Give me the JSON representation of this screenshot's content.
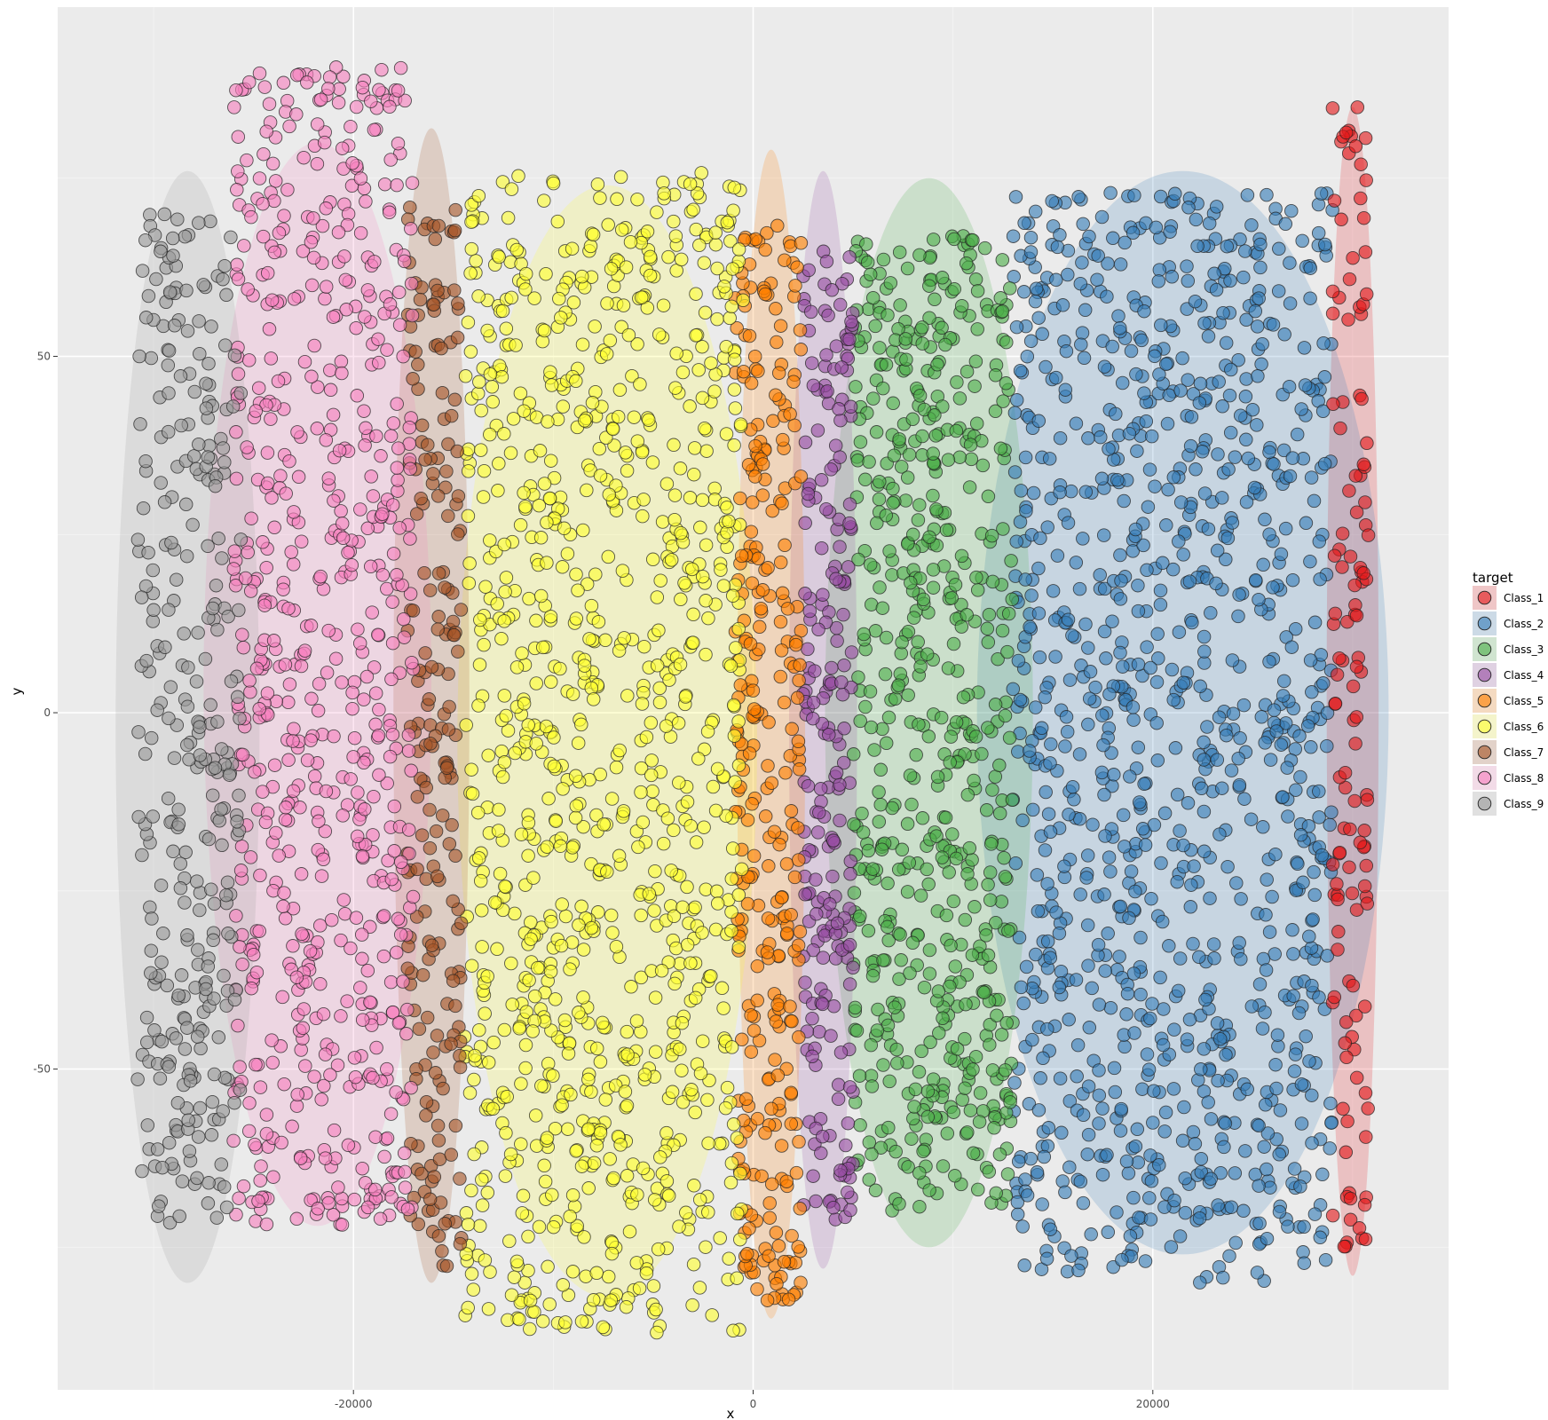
{
  "chart_data": {
    "type": "scatter",
    "title": "",
    "xlabel": "x",
    "ylabel": "y",
    "xlim": [
      -34800,
      34800
    ],
    "ylim": [
      -95,
      99
    ],
    "x_ticks": [
      -20000,
      0,
      20000
    ],
    "x_tick_labels": [
      "-20000",
      "0",
      "20000"
    ],
    "y_ticks": [
      -50,
      0,
      50
    ],
    "y_tick_labels": [
      "-50",
      "0",
      "50"
    ],
    "grid": true,
    "legend": {
      "title": "target",
      "position": "right"
    },
    "series": [
      {
        "name": "Class_1",
        "color": "#e41a1c",
        "n_points": 130,
        "x_range": [
          29000,
          30800
        ],
        "y_range": [
          -75,
          86
        ],
        "ellipse": {
          "cx": 30000,
          "cy": 3,
          "rx": 1300,
          "ry": 82
        }
      },
      {
        "name": "Class_2",
        "color": "#377eb8",
        "n_points": 1100,
        "x_range": [
          13000,
          29000
        ],
        "y_range": [
          -80,
          73
        ],
        "ellipse": {
          "cx": 21500,
          "cy": 0,
          "rx": 10300,
          "ry": 76
        }
      },
      {
        "name": "Class_3",
        "color": "#4daf4a",
        "n_points": 620,
        "x_range": [
          5000,
          13000
        ],
        "y_range": [
          -70,
          67
        ],
        "ellipse": {
          "cx": 8800,
          "cy": 0,
          "rx": 5200,
          "ry": 75
        }
      },
      {
        "name": "Class_4",
        "color": "#984ea3",
        "n_points": 230,
        "x_range": [
          2500,
          5000
        ],
        "y_range": [
          -72,
          65
        ],
        "ellipse": {
          "cx": 3500,
          "cy": -1,
          "rx": 1700,
          "ry": 77
        }
      },
      {
        "name": "Class_5",
        "color": "#ff7f00",
        "n_points": 310,
        "x_range": [
          -900,
          2400
        ],
        "y_range": [
          -83,
          69
        ],
        "ellipse": {
          "cx": 900,
          "cy": -3,
          "rx": 1700,
          "ry": 82
        }
      },
      {
        "name": "Class_6",
        "color": "#ffff33",
        "n_points": 1050,
        "x_range": [
          -14500,
          -500
        ],
        "y_range": [
          -87,
          76
        ],
        "ellipse": {
          "cx": -7300,
          "cy": -4,
          "rx": 7500,
          "ry": 78
        }
      },
      {
        "name": "Class_7",
        "color": "#a65628",
        "n_points": 210,
        "x_range": [
          -17300,
          -14600
        ],
        "y_range": [
          -78,
          71
        ],
        "ellipse": {
          "cx": -16100,
          "cy": 1,
          "rx": 1900,
          "ry": 81
        }
      },
      {
        "name": "Class_8",
        "color": "#f781bf",
        "n_points": 690,
        "x_range": [
          -26000,
          -17000
        ],
        "y_range": [
          -72,
          91
        ],
        "ellipse": {
          "cx": -21800,
          "cy": 4,
          "rx": 5700,
          "ry": 76
        }
      },
      {
        "name": "Class_9",
        "color": "#999999",
        "n_points": 330,
        "x_range": [
          -30800,
          -25600
        ],
        "y_range": [
          -72,
          70
        ],
        "ellipse": {
          "cx": -28300,
          "cy": -2,
          "rx": 3600,
          "ry": 78
        }
      }
    ]
  }
}
